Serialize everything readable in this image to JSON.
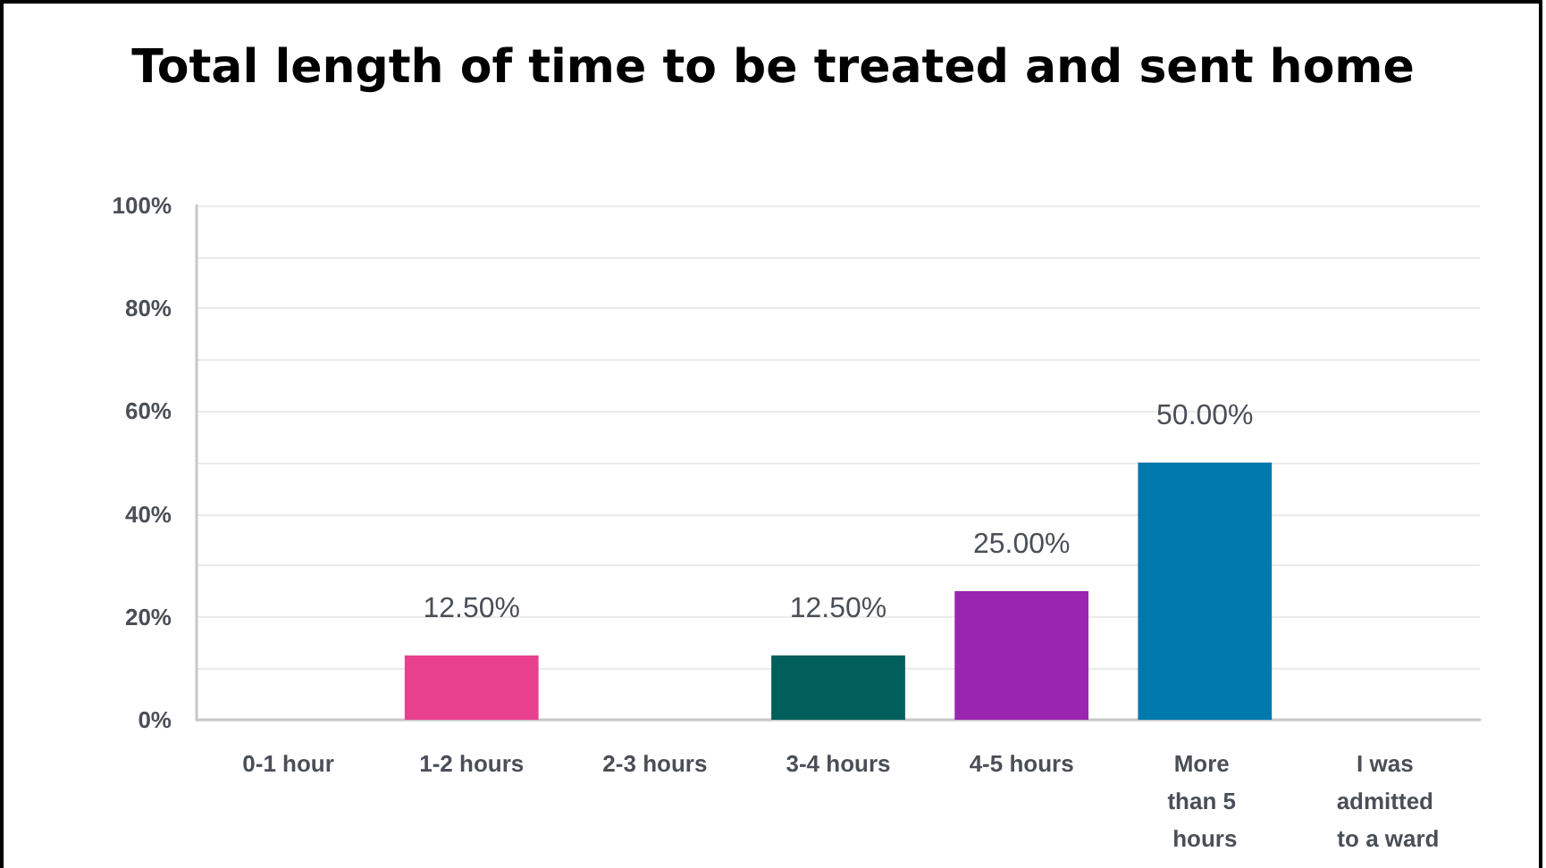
{
  "chart_data": {
    "type": "bar",
    "title": "Total length of time to be treated and sent home",
    "categories": [
      "0-1 hour",
      "1-2 hours",
      "2-3 hours",
      "3-4 hours",
      "4-5 hours",
      "More than 5 hours",
      "I was admitted to a ward"
    ],
    "values": [
      0,
      12.5,
      0,
      12.5,
      25,
      50,
      0
    ],
    "colors": [
      null,
      "#e8408f",
      null,
      "#005e5b",
      "#9a26b0",
      "#0079ad",
      null
    ],
    "value_labels": [
      null,
      "12.50%",
      null,
      "12.50%",
      "25.00%",
      "50.00%",
      null
    ],
    "ylim": [
      0,
      100
    ],
    "yticks": [
      {
        "value": 0,
        "label": "0%"
      },
      {
        "value": 10,
        "label": null
      },
      {
        "value": 20,
        "label": "20%"
      },
      {
        "value": 30,
        "label": null
      },
      {
        "value": 40,
        "label": "40%"
      },
      {
        "value": 50,
        "label": null
      },
      {
        "value": 60,
        "label": "60%"
      },
      {
        "value": 70,
        "label": null
      },
      {
        "value": 80,
        "label": "80%"
      },
      {
        "value": 90,
        "label": null
      },
      {
        "value": 100,
        "label": "100%"
      }
    ],
    "grid": "y"
  }
}
